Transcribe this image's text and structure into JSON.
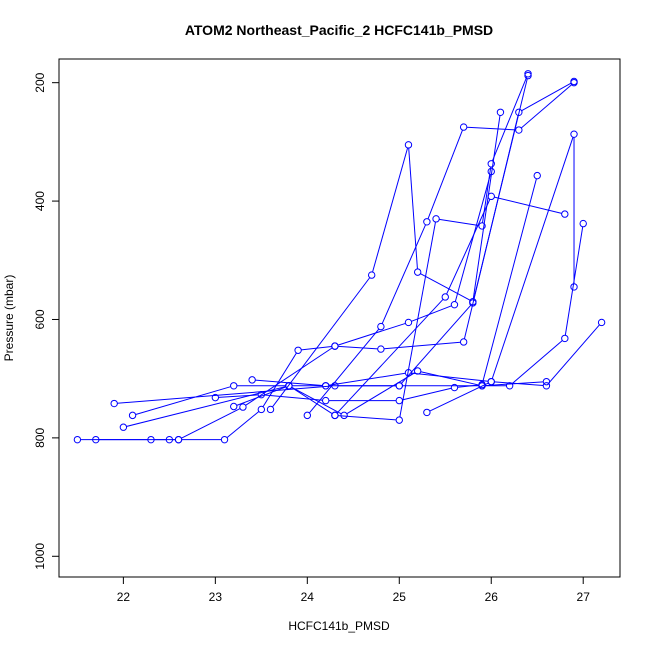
{
  "chart_data": {
    "type": "line",
    "title": "ATOM2 Northeast_Pacific_2 HCFC141b_PMSD",
    "xlabel": "HCFC141b_PMSD",
    "ylabel": "Pressure (mbar)",
    "xlim": [
      21.3,
      27.4
    ],
    "ylim": [
      1035,
      160
    ],
    "y_reversed": true,
    "x_ticks": [
      22,
      23,
      24,
      25,
      26,
      27
    ],
    "x_tick_labels": [
      "22",
      "23",
      "24",
      "25",
      "26",
      "27"
    ],
    "y_ticks": [
      200,
      400,
      600,
      800,
      1000
    ],
    "y_tick_labels": [
      "200",
      "400",
      "600",
      "800",
      "1000"
    ],
    "grid": false,
    "legend": "none",
    "series_color": "#0000ff",
    "series": [
      {
        "x": [
          21.5,
          22.3,
          22.5,
          22.6,
          23.1,
          23.5,
          23.9,
          24.3,
          25.1,
          25.6,
          26.0
        ],
        "y": [
          803,
          803,
          803,
          803,
          803,
          752,
          652,
          645,
          605,
          575,
          350
        ]
      },
      {
        "x": [
          21.7,
          22.6,
          23.3,
          24.3,
          24.8,
          25.7,
          26.3,
          26.9
        ],
        "y": [
          803,
          803,
          748,
          645,
          650,
          638,
          250,
          198
        ]
      },
      {
        "x": [
          21.9,
          24.3,
          25.0,
          25.9,
          26.2,
          26.8,
          27.0
        ],
        "y": [
          742,
          712,
          712,
          712,
          712,
          632,
          438
        ]
      },
      {
        "x": [
          22.0,
          23.8,
          24.3,
          25.5,
          26.0,
          26.8
        ],
        "y": [
          782,
          712,
          762,
          562,
          392,
          422
        ]
      },
      {
        "x": [
          22.1,
          23.2,
          23.8,
          24.2,
          25.0,
          25.8,
          26.4
        ],
        "y": [
          762,
          712,
          712,
          712,
          712,
          572,
          188
        ]
      },
      {
        "x": [
          23.0,
          23.5,
          24.2,
          25.0,
          25.6,
          25.9,
          26.5
        ],
        "y": [
          732,
          727,
          737,
          737,
          715,
          710,
          357
        ]
      },
      {
        "x": [
          23.2,
          23.8,
          24.4,
          25.2,
          25.9,
          26.6
        ],
        "y": [
          747,
          712,
          762,
          687,
          712,
          705
        ]
      },
      {
        "x": [
          23.4,
          24.2,
          25.1,
          26.0,
          26.6,
          27.2
        ],
        "y": [
          702,
          712,
          690,
          705,
          712,
          605
        ]
      },
      {
        "x": [
          24.0,
          24.8,
          25.3,
          25.7,
          26.3,
          26.9
        ],
        "y": [
          762,
          612,
          435,
          275,
          280,
          200
        ]
      },
      {
        "x": [
          24.3,
          25.0,
          25.4,
          25.9,
          26.0,
          26.4
        ],
        "y": [
          762,
          770,
          430,
          442,
          337,
          185
        ]
      },
      {
        "x": [
          23.6,
          24.7,
          25.1,
          25.2,
          25.8,
          26.1
        ],
        "y": [
          752,
          525,
          305,
          520,
          570,
          250
        ]
      },
      {
        "x": [
          25.3,
          26.0,
          26.9,
          26.9
        ],
        "y": [
          757,
          705,
          287,
          545
        ]
      }
    ]
  }
}
